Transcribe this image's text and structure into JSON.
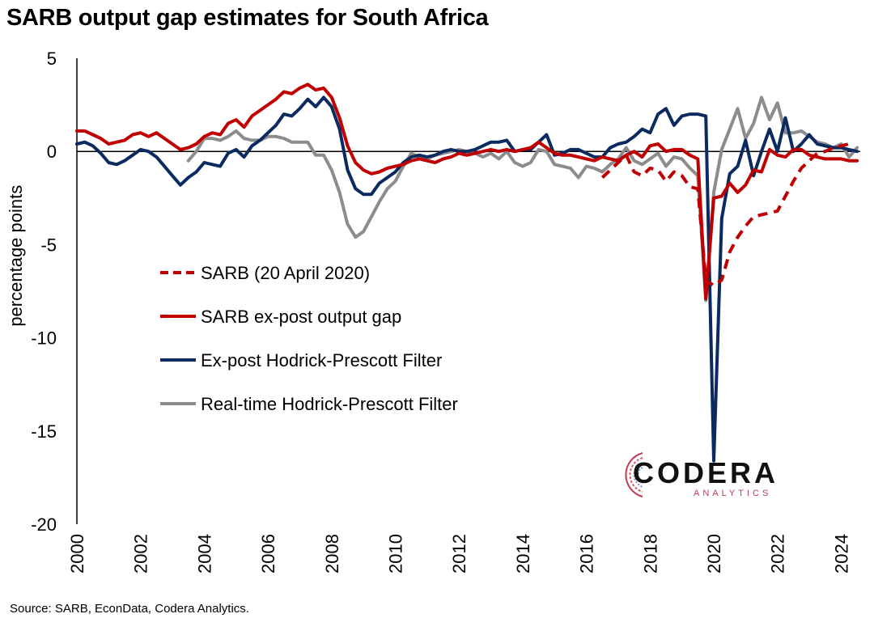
{
  "title": "SARB output gap estimates for South Africa",
  "source": "Source: SARB, EconData, Codera Analytics.",
  "logo": {
    "word": "CODERA",
    "sub": "ANALYTICS"
  },
  "chart_data": {
    "type": "line",
    "title": "SARB output gap estimates for South Africa",
    "xlabel": "",
    "ylabel": "percentage points",
    "xlim": [
      2000.0,
      2024.6
    ],
    "ylim": [
      -20,
      5
    ],
    "yticks": [
      5,
      0,
      -5,
      -10,
      -15,
      -20
    ],
    "ytick_labels": [
      "5",
      "0",
      "-5",
      "-10",
      "-15",
      "-20"
    ],
    "xticks": [
      2000,
      2002,
      2004,
      2006,
      2008,
      2010,
      2012,
      2014,
      2016,
      2018,
      2020,
      2022,
      2024
    ],
    "xtick_labels": [
      "2000",
      "2002",
      "2004",
      "2006",
      "2008",
      "2010",
      "2012",
      "2014",
      "2016",
      "2018",
      "2020",
      "2022",
      "2024"
    ],
    "grid": false,
    "zero_line": true,
    "legend_position": "center-left",
    "series": [
      {
        "name": "SARB (20 April 2020)",
        "color": "#c00000",
        "dashed": true,
        "x": [
          2016.5,
          2016.75,
          2017.0,
          2017.25,
          2017.5,
          2017.75,
          2018.0,
          2018.25,
          2018.5,
          2018.75,
          2019.0,
          2019.25,
          2019.5,
          2019.75,
          2020.0,
          2020.25,
          2020.5,
          2020.75,
          2021.0,
          2021.25,
          2021.5,
          2021.75,
          2022.0,
          2022.25,
          2022.5,
          2022.75,
          2023.0,
          2023.25,
          2023.5,
          2023.75,
          2024.0,
          2024.25
        ],
        "y": [
          -1.4,
          -1.0,
          -0.6,
          -0.2,
          -1.1,
          -1.3,
          -0.9,
          -1.0,
          -1.6,
          -1.1,
          -1.3,
          -1.9,
          -2.0,
          -6.9,
          -7.2,
          -6.9,
          -5.4,
          -4.6,
          -4.0,
          -3.5,
          -3.4,
          -3.3,
          -3.2,
          -2.4,
          -1.6,
          -0.9,
          -0.5,
          -0.1,
          0.0,
          0.2,
          0.3,
          0.4
        ]
      },
      {
        "name": "SARB ex-post output gap",
        "color": "#c00000",
        "dashed": false,
        "x": [
          2000.0,
          2000.25,
          2000.5,
          2000.75,
          2001.0,
          2001.25,
          2001.5,
          2001.75,
          2002.0,
          2002.25,
          2002.5,
          2002.75,
          2003.0,
          2003.25,
          2003.5,
          2003.75,
          2004.0,
          2004.25,
          2004.5,
          2004.75,
          2005.0,
          2005.25,
          2005.5,
          2005.75,
          2006.0,
          2006.25,
          2006.5,
          2006.75,
          2007.0,
          2007.25,
          2007.5,
          2007.75,
          2008.0,
          2008.25,
          2008.5,
          2008.75,
          2009.0,
          2009.25,
          2009.5,
          2009.75,
          2010.0,
          2010.25,
          2010.5,
          2010.75,
          2011.0,
          2011.25,
          2011.5,
          2011.75,
          2012.0,
          2012.25,
          2012.5,
          2012.75,
          2013.0,
          2013.25,
          2013.5,
          2013.75,
          2014.0,
          2014.25,
          2014.5,
          2014.75,
          2015.0,
          2015.25,
          2015.5,
          2015.75,
          2016.0,
          2016.25,
          2016.5,
          2016.75,
          2017.0,
          2017.25,
          2017.5,
          2017.75,
          2018.0,
          2018.25,
          2018.5,
          2018.75,
          2019.0,
          2019.25,
          2019.5,
          2019.75,
          2020.0,
          2020.25,
          2020.5,
          2020.75,
          2021.0,
          2021.25,
          2021.5,
          2021.75,
          2022.0,
          2022.25,
          2022.5,
          2022.75,
          2023.0,
          2023.25,
          2023.5,
          2023.75,
          2024.0,
          2024.25,
          2024.5
        ],
        "y": [
          1.1,
          1.1,
          0.9,
          0.7,
          0.4,
          0.5,
          0.6,
          0.9,
          1.0,
          0.8,
          1.0,
          0.7,
          0.4,
          0.1,
          0.2,
          0.4,
          0.8,
          1.0,
          0.9,
          1.5,
          1.7,
          1.3,
          1.9,
          2.2,
          2.5,
          2.8,
          3.2,
          3.1,
          3.4,
          3.6,
          3.3,
          3.4,
          2.9,
          1.8,
          0.3,
          -0.6,
          -1.0,
          -1.2,
          -1.1,
          -0.9,
          -0.8,
          -0.7,
          -0.5,
          -0.4,
          -0.5,
          -0.6,
          -0.4,
          -0.3,
          -0.1,
          -0.2,
          -0.1,
          0.0,
          0.1,
          0.0,
          0.1,
          0.0,
          0.1,
          0.2,
          0.5,
          0.2,
          -0.1,
          -0.2,
          -0.2,
          -0.3,
          -0.4,
          -0.5,
          -0.3,
          -0.4,
          -0.5,
          -0.2,
          0.0,
          -0.3,
          0.3,
          0.4,
          0.0,
          0.1,
          0.1,
          -0.2,
          -0.4,
          -7.9,
          -2.5,
          -2.4,
          -1.7,
          -2.2,
          -1.8,
          -1.0,
          -1.1,
          0.1,
          -0.2,
          -0.3,
          0.1,
          0.1,
          -0.2,
          -0.3,
          -0.4,
          -0.4,
          -0.4,
          -0.5,
          -0.5
        ]
      },
      {
        "name": "Ex-post Hodrick-Prescott Filter",
        "color": "#0b2a60",
        "dashed": false,
        "x": [
          2000.0,
          2000.25,
          2000.5,
          2000.75,
          2001.0,
          2001.25,
          2001.5,
          2001.75,
          2002.0,
          2002.25,
          2002.5,
          2002.75,
          2003.0,
          2003.25,
          2003.5,
          2003.75,
          2004.0,
          2004.25,
          2004.5,
          2004.75,
          2005.0,
          2005.25,
          2005.5,
          2005.75,
          2006.0,
          2006.25,
          2006.5,
          2006.75,
          2007.0,
          2007.25,
          2007.5,
          2007.75,
          2008.0,
          2008.25,
          2008.5,
          2008.75,
          2009.0,
          2009.25,
          2009.5,
          2009.75,
          2010.0,
          2010.25,
          2010.5,
          2010.75,
          2011.0,
          2011.25,
          2011.5,
          2011.75,
          2012.0,
          2012.25,
          2012.5,
          2012.75,
          2013.0,
          2013.25,
          2013.5,
          2013.75,
          2014.0,
          2014.25,
          2014.5,
          2014.75,
          2015.0,
          2015.25,
          2015.5,
          2015.75,
          2016.0,
          2016.25,
          2016.5,
          2016.75,
          2017.0,
          2017.25,
          2017.5,
          2017.75,
          2018.0,
          2018.25,
          2018.5,
          2018.75,
          2019.0,
          2019.25,
          2019.5,
          2019.75,
          2020.0,
          2020.25,
          2020.5,
          2020.75,
          2021.0,
          2021.25,
          2021.5,
          2021.75,
          2022.0,
          2022.25,
          2022.5,
          2022.75,
          2023.0,
          2023.25,
          2023.5,
          2023.75,
          2024.0,
          2024.25,
          2024.5
        ],
        "y": [
          0.4,
          0.5,
          0.3,
          -0.1,
          -0.6,
          -0.7,
          -0.5,
          -0.2,
          0.1,
          0.0,
          -0.3,
          -0.8,
          -1.3,
          -1.8,
          -1.4,
          -1.1,
          -0.6,
          -0.7,
          -0.8,
          -0.1,
          0.1,
          -0.3,
          0.3,
          0.6,
          1.0,
          1.4,
          2.0,
          1.9,
          2.3,
          2.8,
          2.4,
          2.9,
          2.4,
          1.2,
          -1.0,
          -2.0,
          -2.3,
          -2.3,
          -1.7,
          -1.4,
          -1.1,
          -0.6,
          -0.3,
          -0.2,
          -0.3,
          -0.2,
          0.0,
          0.1,
          0.0,
          0.0,
          0.1,
          0.3,
          0.5,
          0.5,
          0.6,
          0.0,
          0.1,
          0.1,
          0.5,
          0.9,
          -0.2,
          -0.1,
          0.1,
          0.1,
          -0.1,
          -0.3,
          -0.3,
          0.2,
          0.4,
          0.5,
          0.8,
          1.2,
          1.0,
          2.0,
          2.3,
          1.4,
          1.9,
          2.0,
          2.0,
          1.9,
          -16.6,
          -3.6,
          -1.2,
          -0.8,
          0.6,
          -1.3,
          0.0,
          1.2,
          0.0,
          1.8,
          0.0,
          0.4,
          0.9,
          0.4,
          0.3,
          0.2,
          0.2,
          0.1,
          0.0
        ]
      },
      {
        "name": "Real-time Hodrick-Prescott Filter",
        "color": "#8c8c8c",
        "dashed": false,
        "x": [
          2003.5,
          2003.75,
          2004.0,
          2004.25,
          2004.5,
          2004.75,
          2005.0,
          2005.25,
          2005.5,
          2005.75,
          2006.0,
          2006.25,
          2006.5,
          2006.75,
          2007.0,
          2007.25,
          2007.5,
          2007.75,
          2008.0,
          2008.25,
          2008.5,
          2008.75,
          2009.0,
          2009.25,
          2009.5,
          2009.75,
          2010.0,
          2010.25,
          2010.5,
          2010.75,
          2011.0,
          2011.25,
          2011.5,
          2011.75,
          2012.0,
          2012.25,
          2012.5,
          2012.75,
          2013.0,
          2013.25,
          2013.5,
          2013.75,
          2014.0,
          2014.25,
          2014.5,
          2014.75,
          2015.0,
          2015.25,
          2015.5,
          2015.75,
          2016.0,
          2016.25,
          2016.5,
          2016.75,
          2017.0,
          2017.25,
          2017.5,
          2017.75,
          2018.0,
          2018.25,
          2018.5,
          2018.75,
          2019.0,
          2019.25,
          2019.5,
          2019.75,
          2020.0,
          2020.25,
          2020.5,
          2020.75,
          2021.0,
          2021.25,
          2021.5,
          2021.75,
          2022.0,
          2022.25,
          2022.5,
          2022.75,
          2023.0,
          2023.25,
          2023.5,
          2023.75,
          2024.0,
          2024.25,
          2024.5
        ],
        "y": [
          -0.5,
          0.0,
          0.7,
          0.7,
          0.6,
          0.8,
          1.1,
          0.7,
          0.6,
          0.6,
          0.8,
          0.8,
          0.7,
          0.5,
          0.5,
          0.5,
          -0.2,
          -0.2,
          -1.0,
          -2.2,
          -3.9,
          -4.6,
          -4.3,
          -3.5,
          -2.7,
          -2.0,
          -1.6,
          -0.8,
          -0.1,
          -0.3,
          -0.4,
          -0.2,
          -0.1,
          0.0,
          0.1,
          0.0,
          -0.1,
          -0.3,
          -0.1,
          -0.4,
          0.0,
          -0.6,
          -0.8,
          -0.6,
          0.1,
          0.0,
          -0.7,
          -0.8,
          -0.9,
          -1.4,
          -0.8,
          -0.9,
          -1.1,
          -0.7,
          -0.4,
          0.2,
          -0.5,
          -0.7,
          -0.4,
          -0.1,
          -0.8,
          -0.3,
          -0.4,
          -0.9,
          -1.3,
          -8.0,
          -2.2,
          0.1,
          1.2,
          2.3,
          0.7,
          1.5,
          2.9,
          1.7,
          2.6,
          1.0,
          1.0,
          1.1,
          0.8,
          0.5,
          0.4,
          0.2,
          0.4,
          -0.3,
          0.2
        ]
      }
    ]
  }
}
